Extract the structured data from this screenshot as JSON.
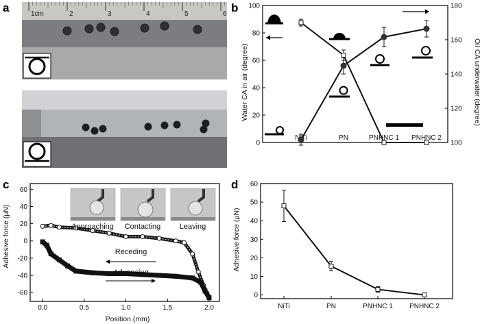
{
  "panels": {
    "a": {
      "label": "a",
      "ruler_ticks": [
        "1cm",
        "2",
        "3",
        "4",
        "5",
        "6"
      ]
    },
    "b": {
      "label": "b"
    },
    "c": {
      "label": "c"
    },
    "d": {
      "label": "d"
    }
  },
  "chart_data": [
    {
      "id": "b",
      "type": "line",
      "categories": [
        "NiTi",
        "PN",
        "PNHNC 1",
        "PNHNC 2"
      ],
      "ylabel": "Water CA in air (degree)",
      "y2label": "Oil CA underwater (degree)",
      "ylim": [
        0,
        100
      ],
      "y2lim": [
        100,
        180
      ],
      "yticks": [
        0,
        20,
        40,
        60,
        80,
        100
      ],
      "y2ticks": [
        100,
        120,
        140,
        160,
        180
      ],
      "series": [
        {
          "axis": "left",
          "marker": "filled-circle",
          "values": [
            2,
            56,
            77,
            83
          ],
          "errors": [
            4,
            6,
            7,
            6
          ]
        },
        {
          "axis": "right",
          "marker": "open-square",
          "values": [
            170,
            151,
            100,
            100
          ],
          "errors": [
            2,
            3,
            0,
            0
          ]
        }
      ]
    },
    {
      "id": "c",
      "type": "line",
      "xlabel": "Position (mm)",
      "ylabel": "Adhesive force (μN)",
      "xlim": [
        -0.1,
        2.0
      ],
      "ylim": [
        -67,
        65
      ],
      "xticks": [
        0.0,
        0.5,
        1.0,
        1.5,
        2.0
      ],
      "yticks": [
        -60,
        -40,
        -20,
        0,
        20,
        40,
        60
      ],
      "annotations": [
        "Receding",
        "Advancing"
      ],
      "inset_labels": [
        "Approaching",
        "Contacting",
        "Leaving"
      ],
      "series": [
        {
          "direction": "receding",
          "marker": "open-circle",
          "x": [
            0.0,
            0.1,
            0.2,
            0.4,
            0.6,
            0.8,
            1.0,
            1.2,
            1.4,
            1.6,
            1.7,
            1.8,
            1.87,
            1.93,
            1.97,
            2.0
          ],
          "y": [
            17,
            18,
            16,
            15,
            12,
            9,
            5,
            5,
            3,
            0,
            -2,
            -15,
            -36,
            -51,
            -60,
            -66
          ]
        },
        {
          "direction": "advancing",
          "marker": "filled-square",
          "x": [
            0.0,
            0.05,
            0.1,
            0.2,
            0.3,
            0.4,
            0.6,
            0.8,
            1.0,
            1.2,
            1.4,
            1.6,
            1.8,
            1.9,
            1.95,
            2.0
          ],
          "y": [
            -1,
            -5,
            -15,
            -22,
            -29,
            -35,
            -37,
            -38,
            -38,
            -39,
            -40,
            -41,
            -43,
            -48,
            -58,
            -66
          ]
        }
      ]
    },
    {
      "id": "d",
      "type": "line",
      "categories": [
        "NiTi",
        "PN",
        "PNHNC 1",
        "PNHNC 2"
      ],
      "ylabel": "Adhesive force (μN)",
      "ylim": [
        -2,
        60
      ],
      "yticks": [
        0,
        10,
        20,
        30,
        40,
        50,
        60
      ],
      "series": [
        {
          "marker": "open-square",
          "values": [
            48,
            15.5,
            3,
            0
          ],
          "errors": [
            8.5,
            2.5,
            1.5,
            0
          ]
        }
      ]
    }
  ]
}
